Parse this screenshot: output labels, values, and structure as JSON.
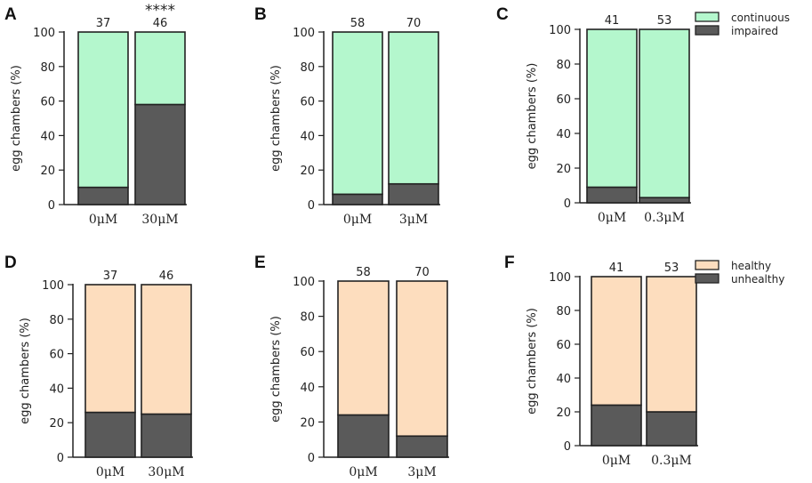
{
  "chart_data": [
    {
      "panel": "A",
      "type": "bar",
      "stacked": true,
      "categories": [
        "0μM",
        "30μM"
      ],
      "counts": [
        "37",
        "46"
      ],
      "significance": [
        "",
        "****"
      ],
      "series": [
        {
          "name": "impaired",
          "values": [
            10,
            58
          ],
          "color": "#5a5a5a"
        },
        {
          "name": "continuous",
          "values": [
            90,
            42
          ],
          "color": "#b4f7cd"
        }
      ],
      "ylabel": "egg chambers (%)",
      "ylim": [
        0,
        100
      ],
      "yticks": [
        "0",
        "20",
        "40",
        "60",
        "80",
        "100"
      ],
      "legend": null
    },
    {
      "panel": "B",
      "type": "bar",
      "stacked": true,
      "categories": [
        "0μM",
        "3μM"
      ],
      "counts": [
        "58",
        "70"
      ],
      "significance": [
        "",
        ""
      ],
      "series": [
        {
          "name": "impaired",
          "values": [
            6,
            12
          ],
          "color": "#5a5a5a"
        },
        {
          "name": "continuous",
          "values": [
            94,
            88
          ],
          "color": "#b4f7cd"
        }
      ],
      "ylabel": "egg chambers (%)",
      "ylim": [
        0,
        100
      ],
      "yticks": [
        "0",
        "20",
        "40",
        "60",
        "80",
        "100"
      ],
      "legend": null
    },
    {
      "panel": "C",
      "type": "bar",
      "stacked": true,
      "categories": [
        "0μM",
        "0.3μM"
      ],
      "counts": [
        "41",
        "53"
      ],
      "significance": [
        "",
        ""
      ],
      "series": [
        {
          "name": "impaired",
          "values": [
            9,
            3
          ],
          "color": "#5a5a5a"
        },
        {
          "name": "continuous",
          "values": [
            91,
            97
          ],
          "color": "#b4f7cd"
        }
      ],
      "ylabel": "egg chambers (%)",
      "ylim": [
        0,
        100
      ],
      "yticks": [
        "0",
        "20",
        "40",
        "60",
        "80",
        "100"
      ],
      "legend": {
        "placement": "top-right",
        "entries": [
          {
            "label": "continuous",
            "color": "#b4f7cd"
          },
          {
            "label": "impaired",
            "color": "#5a5a5a"
          }
        ]
      }
    },
    {
      "panel": "D",
      "type": "bar",
      "stacked": true,
      "categories": [
        "0μM",
        "30μM"
      ],
      "counts": [
        "37",
        "46"
      ],
      "significance": [
        "",
        ""
      ],
      "series": [
        {
          "name": "unhealthy",
          "values": [
            26,
            25
          ],
          "color": "#5a5a5a"
        },
        {
          "name": "healthy",
          "values": [
            74,
            75
          ],
          "color": "#fdddbe"
        }
      ],
      "ylabel": "egg chambers (%)",
      "ylim": [
        0,
        100
      ],
      "yticks": [
        "0",
        "20",
        "40",
        "60",
        "80",
        "100"
      ],
      "legend": null
    },
    {
      "panel": "E",
      "type": "bar",
      "stacked": true,
      "categories": [
        "0μM",
        "3μM"
      ],
      "counts": [
        "58",
        "70"
      ],
      "significance": [
        "",
        ""
      ],
      "series": [
        {
          "name": "unhealthy",
          "values": [
            24,
            12
          ],
          "color": "#5a5a5a"
        },
        {
          "name": "healthy",
          "values": [
            76,
            88
          ],
          "color": "#fdddbe"
        }
      ],
      "ylabel": "egg chambers (%)",
      "ylim": [
        0,
        100
      ],
      "yticks": [
        "0",
        "20",
        "40",
        "60",
        "80",
        "100"
      ],
      "legend": null
    },
    {
      "panel": "F",
      "type": "bar",
      "stacked": true,
      "categories": [
        "0μM",
        "0.3μM"
      ],
      "counts": [
        "41",
        "53"
      ],
      "significance": [
        "",
        ""
      ],
      "series": [
        {
          "name": "unhealthy",
          "values": [
            24,
            20
          ],
          "color": "#5a5a5a"
        },
        {
          "name": "healthy",
          "values": [
            76,
            80
          ],
          "color": "#fdddbe"
        }
      ],
      "ylabel": "egg chambers (%)",
      "ylim": [
        0,
        100
      ],
      "yticks": [
        "0",
        "20",
        "40",
        "60",
        "80",
        "100"
      ],
      "legend": {
        "placement": "top-right",
        "entries": [
          {
            "label": "healthy",
            "color": "#fdddbe"
          },
          {
            "label": "unhealthy",
            "color": "#5a5a5a"
          }
        ]
      }
    }
  ]
}
